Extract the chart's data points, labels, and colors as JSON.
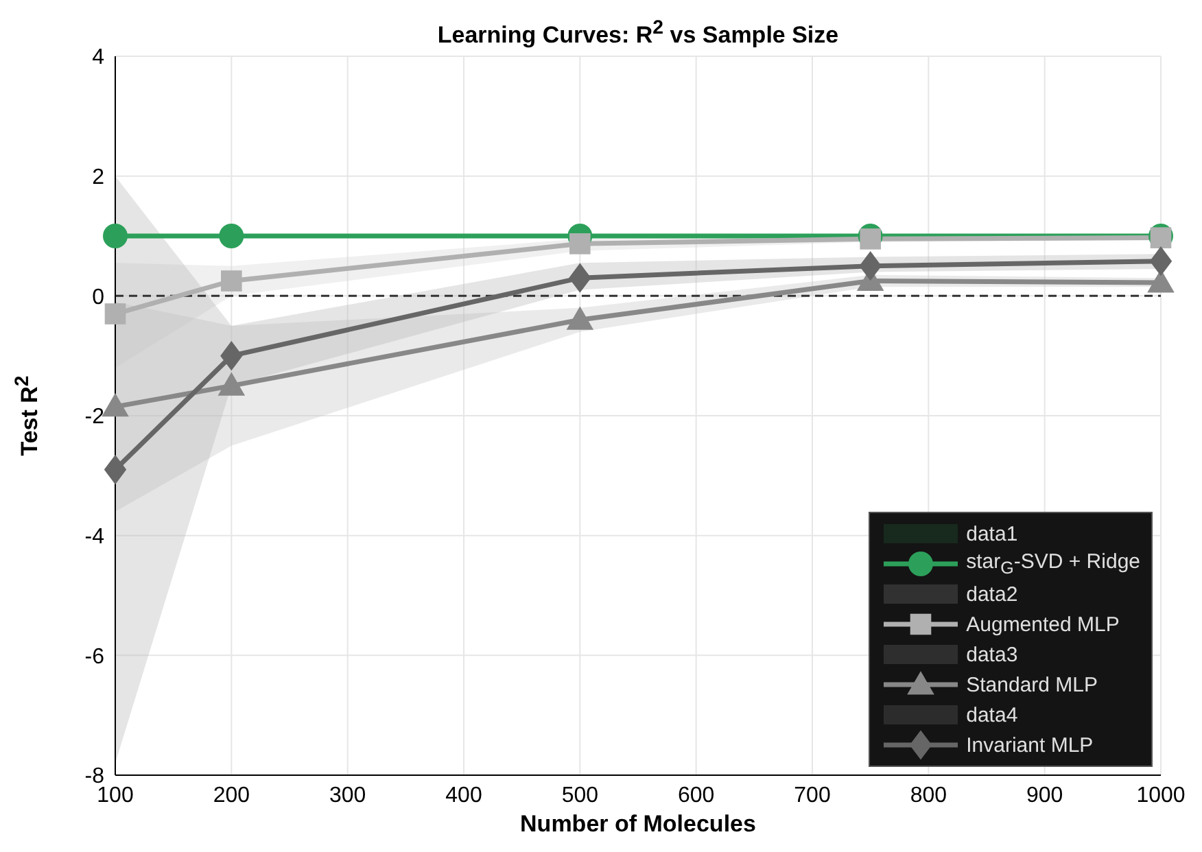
{
  "chart_data": {
    "type": "line",
    "title": "Learning Curves: R$^{2}$ vs Sample Size",
    "xlabel": "Number of Molecules",
    "ylabel": "Test R$^{2}$",
    "x": [
      100,
      200,
      500,
      750,
      1000
    ],
    "xlim": [
      100,
      1000
    ],
    "xticks": [
      100,
      200,
      300,
      400,
      500,
      600,
      700,
      800,
      900,
      1000
    ],
    "ylim": [
      -8,
      4
    ],
    "yticks": [
      -8,
      -6,
      -4,
      -2,
      0,
      2,
      4
    ],
    "grid": true,
    "legend": "bottom right",
    "line_style": "solid",
    "ref_lines": [
      {
        "axis": "y",
        "value": 0,
        "color": "#333333",
        "line_style": "dashed"
      }
    ],
    "series": [
      {
        "name": "data1",
        "type": "area",
        "color": "#2ca05a",
        "values": [
          null,
          null,
          null,
          null,
          null
        ]
      },
      {
        "name": "star$_{G}$-SVD + Ridge",
        "marker": "circle",
        "color": "#2ca05a",
        "values": [
          1.0,
          1.0,
          1.0,
          1.0,
          1.0
        ]
      },
      {
        "name": "data2",
        "type": "area",
        "color": "#d4d4d4",
        "values": [
          null,
          null,
          null,
          null,
          null
        ],
        "lower": [
          -1.2,
          0.0,
          0.75,
          0.9,
          0.93
        ],
        "upper": [
          0.55,
          0.5,
          0.95,
          1.0,
          1.0
        ]
      },
      {
        "name": "Augmented MLP",
        "marker": "square",
        "color": "#b0b0b0",
        "values": [
          -0.3,
          0.25,
          0.87,
          0.95,
          0.97
        ]
      },
      {
        "name": "data3",
        "type": "area",
        "color": "#c4c4c4",
        "values": [
          null,
          null,
          null,
          null,
          null
        ],
        "lower": [
          -3.6,
          -2.5,
          -0.6,
          0.15,
          0.15
        ],
        "upper": [
          -0.1,
          -0.5,
          -0.2,
          0.35,
          0.3
        ]
      },
      {
        "name": "Standard MLP",
        "marker": "triangle",
        "color": "#888888",
        "values": [
          -1.85,
          -1.5,
          -0.4,
          0.25,
          0.22
        ]
      },
      {
        "name": "data4",
        "type": "area",
        "color": "#b4b4b4",
        "values": [
          null,
          null,
          null,
          null,
          null
        ],
        "lower": [
          -7.8,
          -1.5,
          0.1,
          0.4,
          0.45
        ],
        "upper": [
          2.0,
          -0.5,
          0.55,
          0.65,
          0.7
        ]
      },
      {
        "name": "Invariant MLP",
        "marker": "diamond",
        "color": "#666666",
        "values": [
          -2.9,
          -1.0,
          0.3,
          0.5,
          0.58
        ]
      }
    ]
  }
}
